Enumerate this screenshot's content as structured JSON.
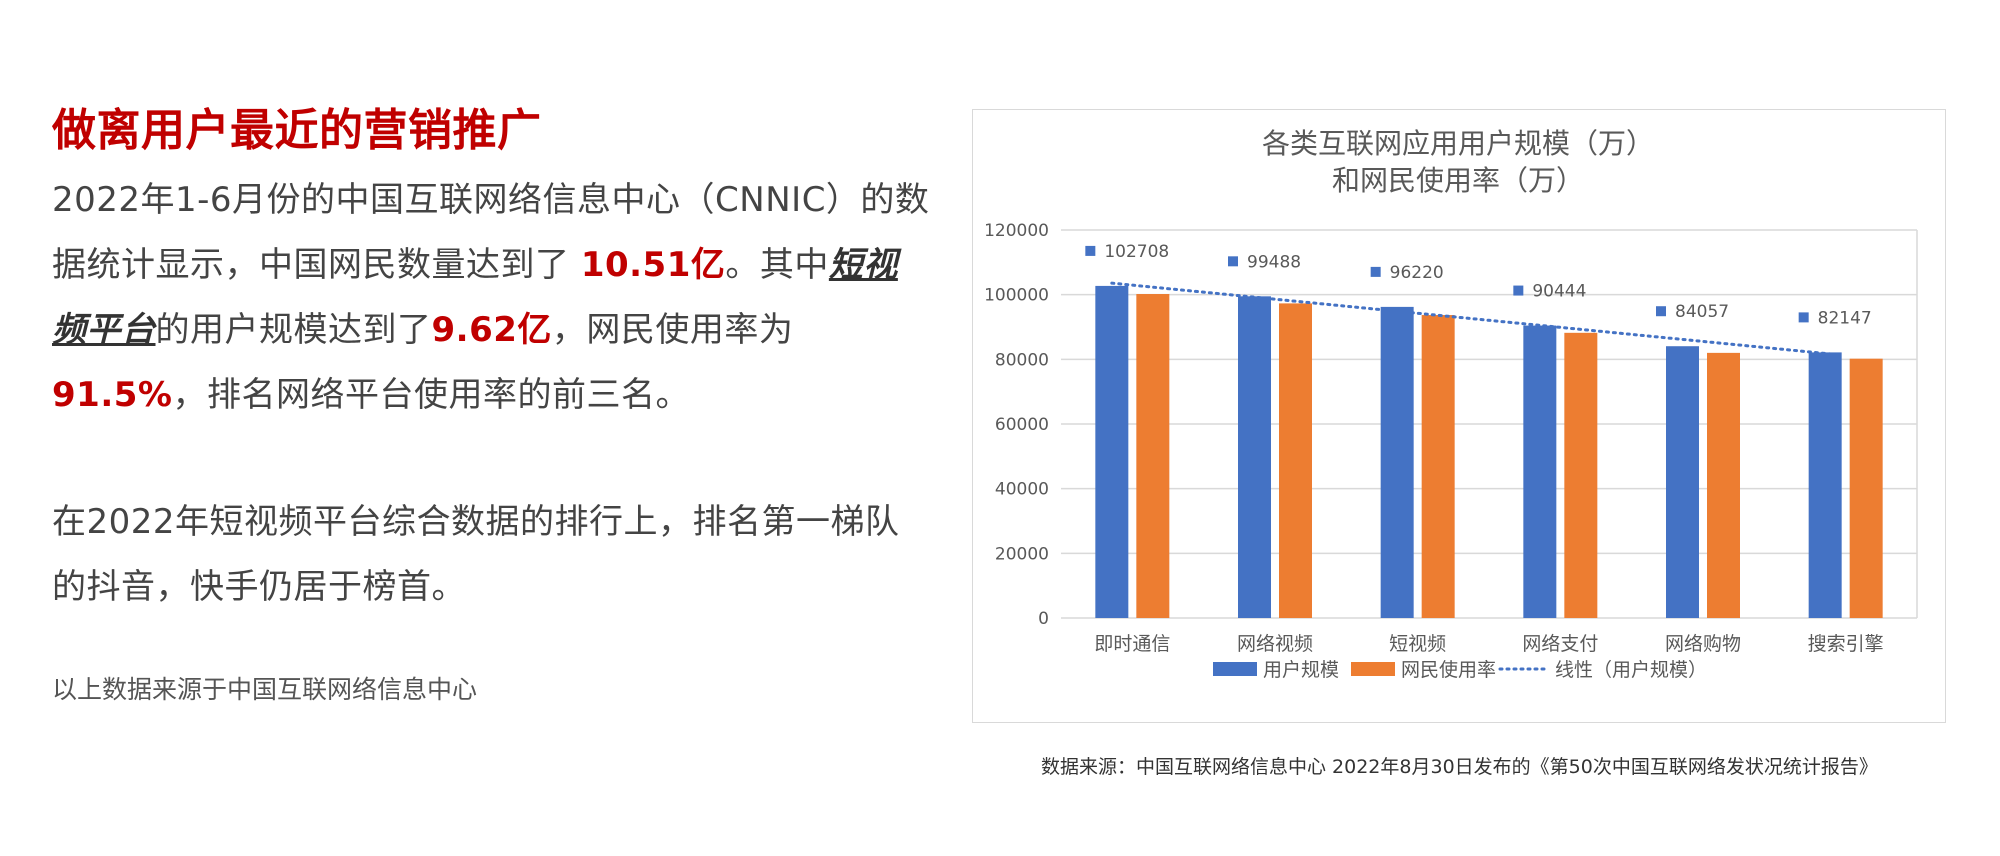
{
  "left": {
    "heading": "做离用户最近的营销推广",
    "p1_a": "2022年1-6月份的中国互联网络信息中心（CNNIC）的数据统计显示，中国网民数量达到了 ",
    "p1_b": "10.51亿",
    "p1_c": "。其中",
    "p1_d": "短视频平台",
    "p1_e": "的用户规模达到了",
    "p1_f": "9.62亿",
    "p1_g": "，网民使用率为 ",
    "p1_h": "91.5%",
    "p1_i": "，排名网络平台使用率的前三名。",
    "p2": "在2022年短视频平台综合数据的排行上，排名第一梯队的抖音，快手仍居于榜首。",
    "note": "以上数据来源于中国互联网络信息中心"
  },
  "source": "数据来源：中国互联网络信息中心 2022年8月30日发布的《第50次中国互联网络发状况统计报告》",
  "colors": {
    "accent": "#c00000",
    "series1": "#4472c4",
    "series2": "#ed7d31",
    "grid": "#d9d9d9",
    "axis_text": "#595959"
  },
  "chart_data": {
    "type": "bar",
    "title": [
      "各类互联网应用用户规模（万）",
      "和网民使用率（万）"
    ],
    "categories": [
      "即时通信",
      "网络视频",
      "短视频",
      "网络支付",
      "网络购物",
      "搜索引擎"
    ],
    "series": [
      {
        "name": "用户规模",
        "values": [
          102708,
          99488,
          96220,
          90444,
          84057,
          82147
        ],
        "color": "#4472c4"
      },
      {
        "name": "网民使用率",
        "values": [
          100200,
          97300,
          93700,
          88200,
          82000,
          80200
        ],
        "color": "#ed7d31"
      }
    ],
    "data_labels": [
      "102708",
      "99488",
      "96220",
      "90444",
      "84057",
      "82147"
    ],
    "trendline": {
      "name": "线性（用户规模）",
      "of": "用户规模",
      "style": "dotted",
      "color": "#4472c4"
    },
    "yticks": [
      "0",
      "20000",
      "40000",
      "60000",
      "80000",
      "100000",
      "120000"
    ],
    "ylim": [
      0,
      120000
    ],
    "grid": true,
    "legend": "bottom"
  }
}
